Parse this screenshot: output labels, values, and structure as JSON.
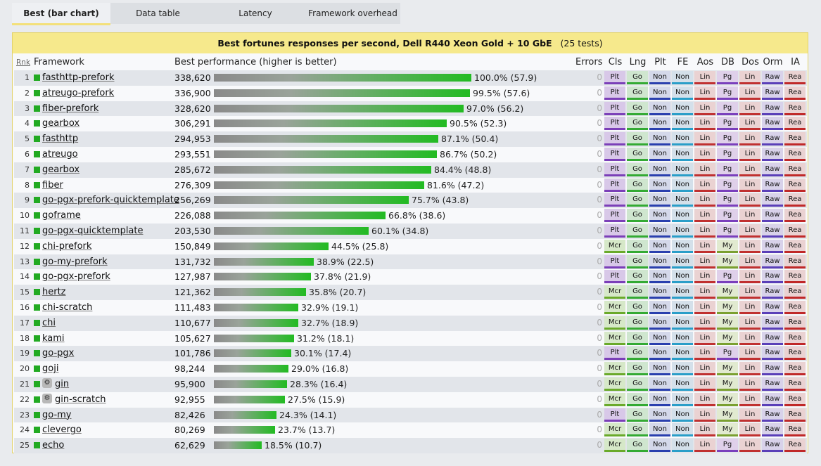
{
  "tabs": [
    {
      "label": "Best (bar chart)",
      "active": true
    },
    {
      "label": "Data table",
      "active": false
    },
    {
      "label": "Latency",
      "active": false
    },
    {
      "label": "Framework overhead",
      "active": false
    }
  ],
  "title": {
    "main": "Best fortunes responses per second, Dell R440 Xeon Gold + 10 GbE",
    "count": "(25 tests)"
  },
  "headers": {
    "rank": "Rnk",
    "framework": "Framework",
    "performance": "Best performance (higher is better)",
    "errors": "Errors",
    "cols": [
      "Cls",
      "Lng",
      "Plt",
      "FE",
      "Aos",
      "DB",
      "Dos",
      "Orm",
      "IA"
    ]
  },
  "badge_colors": {
    "Plt": {
      "bg": "#d8c8e8",
      "line": "#7b3fb8"
    },
    "Mcr": {
      "bg": "#d6e8c8",
      "line": "#6aaa2a"
    },
    "Go": {
      "bg": "#cfe6cf",
      "line": "#33aa33"
    },
    "Non": {
      "bg": "#d4d8ea",
      "line": "#2a3fae"
    },
    "NonFE": {
      "bg": "#d4e0ea",
      "line": "#2a9ec8"
    },
    "Lin": {
      "bg": "#ead2d2",
      "line": "#c03030"
    },
    "Pg": {
      "bg": "#dfd0ea",
      "line": "#7a3fbc"
    },
    "My": {
      "bg": "#e1ead0",
      "line": "#7aa030"
    },
    "Raw": {
      "bg": "#d8d2ea",
      "line": "#5a3fb8"
    },
    "Rea": {
      "bg": "#ead2d2",
      "line": "#c02828"
    }
  },
  "chart_data": {
    "type": "bar",
    "title": "Best fortunes responses per second, Dell R440 Xeon Gold + 10 GbE",
    "ylabel": "Best performance (higher is better)",
    "categories": [
      "fasthttp-prefork",
      "atreugo-prefork",
      "fiber-prefork",
      "gearbox",
      "fasthttp",
      "atreugo",
      "gearbox",
      "fiber",
      "go-pgx-prefork-quicktemplate",
      "goframe",
      "go-pgx-quicktemplate",
      "chi-prefork",
      "go-my-prefork",
      "go-pgx-prefork",
      "hertz",
      "chi-scratch",
      "chi",
      "kami",
      "go-pgx",
      "goji",
      "gin",
      "gin-scratch",
      "go-my",
      "clevergo",
      "echo"
    ],
    "values": [
      338620,
      336900,
      328620,
      306291,
      294953,
      293551,
      285672,
      276309,
      256269,
      226088,
      203530,
      150849,
      131732,
      127987,
      121362,
      111483,
      110677,
      105627,
      101786,
      98244,
      95900,
      92955,
      82426,
      80269,
      62629
    ]
  },
  "rows": [
    {
      "rank": "1",
      "name": "fasthttp-prefork",
      "value": "338,620",
      "pct": "100.0% (57.9)",
      "frac": 1.0,
      "err": "0",
      "gear": false,
      "badges": [
        "Plt",
        "Go",
        "Non",
        "Non",
        "Lin",
        "Pg",
        "Lin",
        "Raw",
        "Rea"
      ]
    },
    {
      "rank": "2",
      "name": "atreugo-prefork",
      "value": "336,900",
      "pct": "99.5% (57.6)",
      "frac": 0.995,
      "err": "0",
      "gear": false,
      "badges": [
        "Plt",
        "Go",
        "Non",
        "Non",
        "Lin",
        "Pg",
        "Lin",
        "Raw",
        "Rea"
      ]
    },
    {
      "rank": "3",
      "name": "fiber-prefork",
      "value": "328,620",
      "pct": "97.0% (56.2)",
      "frac": 0.97,
      "err": "0",
      "gear": false,
      "badges": [
        "Plt",
        "Go",
        "Non",
        "Non",
        "Lin",
        "Pg",
        "Lin",
        "Raw",
        "Rea"
      ]
    },
    {
      "rank": "4",
      "name": "gearbox",
      "value": "306,291",
      "pct": "90.5% (52.3)",
      "frac": 0.905,
      "err": "0",
      "gear": false,
      "badges": [
        "Plt",
        "Go",
        "Non",
        "Non",
        "Lin",
        "Pg",
        "Lin",
        "Raw",
        "Rea"
      ]
    },
    {
      "rank": "5",
      "name": "fasthttp",
      "value": "294,953",
      "pct": "87.1% (50.4)",
      "frac": 0.871,
      "err": "0",
      "gear": false,
      "badges": [
        "Plt",
        "Go",
        "Non",
        "Non",
        "Lin",
        "Pg",
        "Lin",
        "Raw",
        "Rea"
      ]
    },
    {
      "rank": "6",
      "name": "atreugo",
      "value": "293,551",
      "pct": "86.7% (50.2)",
      "frac": 0.867,
      "err": "0",
      "gear": false,
      "badges": [
        "Plt",
        "Go",
        "Non",
        "Non",
        "Lin",
        "Pg",
        "Lin",
        "Raw",
        "Rea"
      ]
    },
    {
      "rank": "7",
      "name": "gearbox",
      "value": "285,672",
      "pct": "84.4% (48.8)",
      "frac": 0.844,
      "err": "0",
      "gear": false,
      "badges": [
        "Plt",
        "Go",
        "Non",
        "Non",
        "Lin",
        "Pg",
        "Lin",
        "Raw",
        "Rea"
      ]
    },
    {
      "rank": "8",
      "name": "fiber",
      "value": "276,309",
      "pct": "81.6% (47.2)",
      "frac": 0.816,
      "err": "0",
      "gear": false,
      "badges": [
        "Plt",
        "Go",
        "Non",
        "Non",
        "Lin",
        "Pg",
        "Lin",
        "Raw",
        "Rea"
      ]
    },
    {
      "rank": "9",
      "name": "go-pgx-prefork-quicktemplate",
      "value": "256,269",
      "pct": "75.7% (43.8)",
      "frac": 0.757,
      "err": "0",
      "gear": false,
      "badges": [
        "Plt",
        "Go",
        "Non",
        "Non",
        "Lin",
        "Pg",
        "Lin",
        "Raw",
        "Rea"
      ]
    },
    {
      "rank": "10",
      "name": "goframe",
      "value": "226,088",
      "pct": "66.8% (38.6)",
      "frac": 0.668,
      "err": "0",
      "gear": false,
      "badges": [
        "Plt",
        "Go",
        "Non",
        "Non",
        "Lin",
        "Pg",
        "Lin",
        "Raw",
        "Rea"
      ]
    },
    {
      "rank": "11",
      "name": "go-pgx-quicktemplate",
      "value": "203,530",
      "pct": "60.1% (34.8)",
      "frac": 0.601,
      "err": "0",
      "gear": false,
      "badges": [
        "Plt",
        "Go",
        "Non",
        "Non",
        "Lin",
        "Pg",
        "Lin",
        "Raw",
        "Rea"
      ]
    },
    {
      "rank": "12",
      "name": "chi-prefork",
      "value": "150,849",
      "pct": "44.5% (25.8)",
      "frac": 0.445,
      "err": "0",
      "gear": false,
      "badges": [
        "Mcr",
        "Go",
        "Non",
        "Non",
        "Lin",
        "My",
        "Lin",
        "Raw",
        "Rea"
      ]
    },
    {
      "rank": "13",
      "name": "go-my-prefork",
      "value": "131,732",
      "pct": "38.9% (22.5)",
      "frac": 0.389,
      "err": "0",
      "gear": false,
      "badges": [
        "Plt",
        "Go",
        "Non",
        "Non",
        "Lin",
        "My",
        "Lin",
        "Raw",
        "Rea"
      ]
    },
    {
      "rank": "14",
      "name": "go-pgx-prefork",
      "value": "127,987",
      "pct": "37.8% (21.9)",
      "frac": 0.378,
      "err": "0",
      "gear": false,
      "badges": [
        "Plt",
        "Go",
        "Non",
        "Non",
        "Lin",
        "Pg",
        "Lin",
        "Raw",
        "Rea"
      ]
    },
    {
      "rank": "15",
      "name": "hertz",
      "value": "121,362",
      "pct": "35.8% (20.7)",
      "frac": 0.358,
      "err": "0",
      "gear": false,
      "badges": [
        "Mcr",
        "Go",
        "Non",
        "Non",
        "Lin",
        "My",
        "Lin",
        "Raw",
        "Rea"
      ]
    },
    {
      "rank": "16",
      "name": "chi-scratch",
      "value": "111,483",
      "pct": "32.9% (19.1)",
      "frac": 0.329,
      "err": "0",
      "gear": false,
      "badges": [
        "Mcr",
        "Go",
        "Non",
        "Non",
        "Lin",
        "My",
        "Lin",
        "Raw",
        "Rea"
      ]
    },
    {
      "rank": "17",
      "name": "chi",
      "value": "110,677",
      "pct": "32.7% (18.9)",
      "frac": 0.327,
      "err": "0",
      "gear": false,
      "badges": [
        "Mcr",
        "Go",
        "Non",
        "Non",
        "Lin",
        "My",
        "Lin",
        "Raw",
        "Rea"
      ]
    },
    {
      "rank": "18",
      "name": "kami",
      "value": "105,627",
      "pct": "31.2% (18.1)",
      "frac": 0.312,
      "err": "0",
      "gear": false,
      "badges": [
        "Mcr",
        "Go",
        "Non",
        "Non",
        "Lin",
        "My",
        "Lin",
        "Raw",
        "Rea"
      ]
    },
    {
      "rank": "19",
      "name": "go-pgx",
      "value": "101,786",
      "pct": "30.1% (17.4)",
      "frac": 0.301,
      "err": "0",
      "gear": false,
      "badges": [
        "Plt",
        "Go",
        "Non",
        "Non",
        "Lin",
        "Pg",
        "Lin",
        "Raw",
        "Rea"
      ]
    },
    {
      "rank": "20",
      "name": "goji",
      "value": "98,244",
      "pct": "29.0% (16.8)",
      "frac": 0.29,
      "err": "0",
      "gear": false,
      "badges": [
        "Mcr",
        "Go",
        "Non",
        "Non",
        "Lin",
        "My",
        "Lin",
        "Raw",
        "Rea"
      ]
    },
    {
      "rank": "21",
      "name": "gin",
      "value": "95,900",
      "pct": "28.3% (16.4)",
      "frac": 0.283,
      "err": "0",
      "gear": true,
      "badges": [
        "Mcr",
        "Go",
        "Non",
        "Non",
        "Lin",
        "My",
        "Lin",
        "Raw",
        "Rea"
      ]
    },
    {
      "rank": "22",
      "name": "gin-scratch",
      "value": "92,955",
      "pct": "27.5% (15.9)",
      "frac": 0.275,
      "err": "0",
      "gear": true,
      "badges": [
        "Mcr",
        "Go",
        "Non",
        "Non",
        "Lin",
        "My",
        "Lin",
        "Raw",
        "Rea"
      ]
    },
    {
      "rank": "23",
      "name": "go-my",
      "value": "82,426",
      "pct": "24.3% (14.1)",
      "frac": 0.243,
      "err": "0",
      "gear": false,
      "badges": [
        "Plt",
        "Go",
        "Non",
        "Non",
        "Lin",
        "My",
        "Lin",
        "Raw",
        "Rea"
      ]
    },
    {
      "rank": "24",
      "name": "clevergo",
      "value": "80,269",
      "pct": "23.7% (13.7)",
      "frac": 0.237,
      "err": "0",
      "gear": false,
      "badges": [
        "Mcr",
        "Go",
        "Non",
        "Non",
        "Lin",
        "My",
        "Lin",
        "Raw",
        "Rea"
      ]
    },
    {
      "rank": "25",
      "name": "echo",
      "value": "62,629",
      "pct": "18.5% (10.7)",
      "frac": 0.185,
      "err": "0",
      "gear": false,
      "badges": [
        "Mcr",
        "Go",
        "Non",
        "Non",
        "Lin",
        "Pg",
        "Lin",
        "Raw",
        "Rea"
      ]
    }
  ]
}
